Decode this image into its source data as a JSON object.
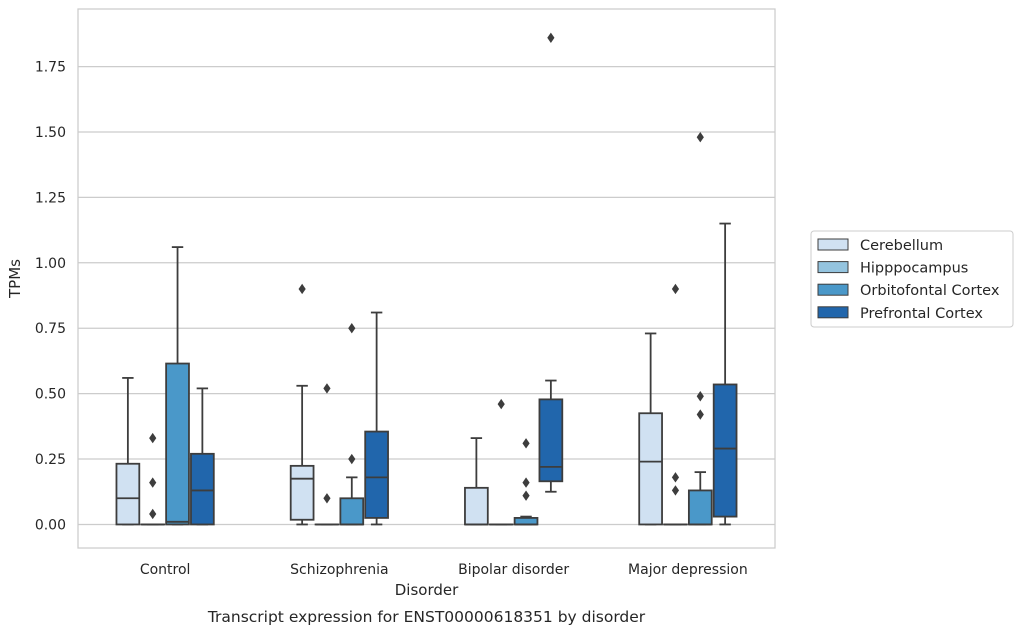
{
  "chart_data": {
    "type": "box",
    "title": "",
    "caption": "Transcript expression for ENST00000618351 by disorder",
    "xlabel": "Disorder",
    "ylabel": "TPMs",
    "ylim": [
      -0.09,
      1.97
    ],
    "yticks": [
      0.0,
      0.25,
      0.5,
      0.75,
      1.0,
      1.25,
      1.5,
      1.75
    ],
    "ytick_labels": [
      "0.00",
      "0.25",
      "0.50",
      "0.75",
      "1.00",
      "1.25",
      "1.50",
      "1.75"
    ],
    "grid": "horizontal",
    "legend_position": "right",
    "categories": [
      "Control",
      "Schizophrenia",
      "Bipolar disorder",
      "Major depression"
    ],
    "series": [
      {
        "name": "Cerebellum",
        "color": "#d0e1f2",
        "boxes": [
          {
            "q1": 0.0,
            "median": 0.1,
            "q3": 0.232,
            "whisker_low": 0.0,
            "whisker_high": 0.56,
            "outliers": []
          },
          {
            "q1": 0.018,
            "median": 0.175,
            "q3": 0.224,
            "whisker_low": 0.0,
            "whisker_high": 0.53,
            "outliers": [
              0.9
            ]
          },
          {
            "q1": 0.0,
            "median": 0.0,
            "q3": 0.14,
            "whisker_low": 0.0,
            "whisker_high": 0.33,
            "outliers": []
          },
          {
            "q1": 0.0,
            "median": 0.24,
            "q3": 0.425,
            "whisker_low": 0.0,
            "whisker_high": 0.73,
            "outliers": []
          }
        ]
      },
      {
        "name": "Hipppocampus",
        "color": "#94c4df",
        "boxes": [
          {
            "q1": 0.0,
            "median": 0.0,
            "q3": 0.0,
            "whisker_low": 0.0,
            "whisker_high": 0.0,
            "outliers": [
              0.04,
              0.16,
              0.33
            ]
          },
          {
            "q1": 0.0,
            "median": 0.0,
            "q3": 0.0,
            "whisker_low": 0.0,
            "whisker_high": 0.0,
            "outliers": [
              0.1,
              0.52
            ]
          },
          {
            "q1": 0.0,
            "median": 0.0,
            "q3": 0.0,
            "whisker_low": 0.0,
            "whisker_high": 0.0,
            "outliers": [
              0.46
            ]
          },
          {
            "q1": 0.0,
            "median": 0.0,
            "q3": 0.0,
            "whisker_low": 0.0,
            "whisker_high": 0.0,
            "outliers": [
              0.13,
              0.18,
              0.9
            ]
          }
        ]
      },
      {
        "name": "Orbitofontal Cortex",
        "color": "#4a98c9",
        "boxes": [
          {
            "q1": 0.0,
            "median": 0.01,
            "q3": 0.615,
            "whisker_low": 0.0,
            "whisker_high": 1.06,
            "outliers": []
          },
          {
            "q1": 0.0,
            "median": 0.0,
            "q3": 0.1,
            "whisker_low": 0.0,
            "whisker_high": 0.18,
            "outliers": [
              0.25,
              0.75
            ]
          },
          {
            "q1": 0.0,
            "median": 0.0,
            "q3": 0.025,
            "whisker_low": 0.0,
            "whisker_high": 0.03,
            "outliers": [
              0.11,
              0.16,
              0.31
            ]
          },
          {
            "q1": 0.0,
            "median": 0.0,
            "q3": 0.13,
            "whisker_low": 0.0,
            "whisker_high": 0.2,
            "outliers": [
              0.42,
              0.49,
              1.48
            ]
          }
        ]
      },
      {
        "name": "Prefrontal Cortex",
        "color": "#2166ac",
        "boxes": [
          {
            "q1": 0.0,
            "median": 0.13,
            "q3": 0.27,
            "whisker_low": 0.0,
            "whisker_high": 0.52,
            "outliers": []
          },
          {
            "q1": 0.025,
            "median": 0.18,
            "q3": 0.355,
            "whisker_low": 0.0,
            "whisker_high": 0.81,
            "outliers": []
          },
          {
            "q1": 0.165,
            "median": 0.22,
            "q3": 0.478,
            "whisker_low": 0.125,
            "whisker_high": 0.55,
            "outliers": [
              1.86
            ]
          },
          {
            "q1": 0.03,
            "median": 0.29,
            "q3": 0.535,
            "whisker_low": 0.0,
            "whisker_high": 1.15,
            "outliers": []
          }
        ]
      }
    ]
  }
}
